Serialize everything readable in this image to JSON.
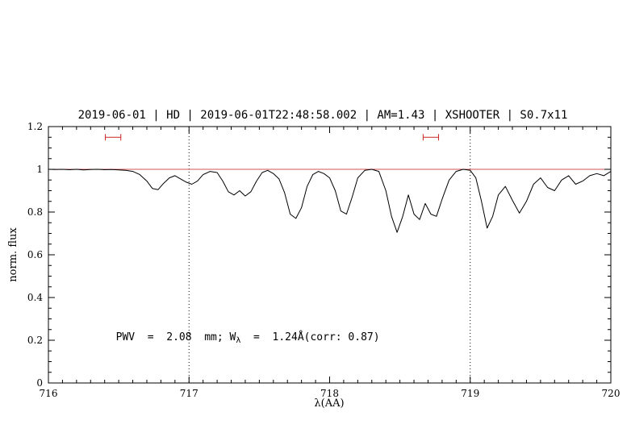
{
  "colors": {
    "accent_text": "#0000cc",
    "spectrum": "#000000",
    "continuum": "#cc5555",
    "marker": "#cc2222",
    "axis": "#000000"
  },
  "chart_data": {
    "type": "line",
    "title": "2019-06-01 | HD | 2019-06-01T22:48:58.002 | AM=1.43 | XSHOOTER | S0.7x11",
    "xlabel": "λ(AA)",
    "ylabel": "norm. flux",
    "xlim": [
      716,
      720
    ],
    "ylim": [
      0,
      1.2
    ],
    "xticks": {
      "values": [
        716,
        717,
        718,
        719,
        720
      ],
      "labels": [
        "716",
        "717",
        "718",
        "719",
        "720"
      ]
    },
    "yticks": {
      "values": [
        0,
        0.2,
        0.4,
        0.6,
        0.8,
        1,
        1.2
      ],
      "labels": [
        "0",
        "0.2",
        "0.4",
        "0.6",
        "0.8",
        "1",
        "1.2"
      ]
    },
    "x_minor_step": 0.1,
    "y_minor_step": 0.05,
    "grid": false,
    "guide_lines_x": [
      717,
      719
    ],
    "continuum_y": 1.0,
    "range_markers": [
      {
        "x_center": 716.46,
        "y": 1.15,
        "half_width": 0.055
      },
      {
        "x_center": 718.72,
        "y": 1.15,
        "half_width": 0.055
      }
    ],
    "annotation": {
      "pre": "PWV  =  2.08  mm; W",
      "sub": "λ",
      "post": "  =  1.24Å(corr: 0.87)",
      "x": 716.48,
      "y": 0.2
    },
    "series": [
      {
        "name": "spectrum",
        "x": [
          716.0,
          716.05,
          716.1,
          716.15,
          716.2,
          716.25,
          716.3,
          716.35,
          716.4,
          716.45,
          716.5,
          716.55,
          716.6,
          716.65,
          716.7,
          716.74,
          716.78,
          716.82,
          716.86,
          716.9,
          716.94,
          716.98,
          717.02,
          717.06,
          717.1,
          717.15,
          717.2,
          717.24,
          717.28,
          717.32,
          717.36,
          717.4,
          717.44,
          717.48,
          717.52,
          717.56,
          717.6,
          717.64,
          717.68,
          717.72,
          717.76,
          717.8,
          717.84,
          717.88,
          717.92,
          717.96,
          718.0,
          718.04,
          718.08,
          718.12,
          718.16,
          718.2,
          718.25,
          718.3,
          718.35,
          718.4,
          718.44,
          718.48,
          718.52,
          718.56,
          718.6,
          718.64,
          718.68,
          718.72,
          718.76,
          718.8,
          718.85,
          718.9,
          718.95,
          719.0,
          719.04,
          719.08,
          719.12,
          719.16,
          719.2,
          719.25,
          719.3,
          719.35,
          719.4,
          719.45,
          719.5,
          719.55,
          719.6,
          719.65,
          719.7,
          719.75,
          719.8,
          719.85,
          719.9,
          719.95,
          720.0
        ],
        "y": [
          1.0,
          0.999,
          1.0,
          0.998,
          1.0,
          0.997,
          0.999,
          1.0,
          0.998,
          0.999,
          0.997,
          0.995,
          0.99,
          0.975,
          0.945,
          0.91,
          0.905,
          0.935,
          0.96,
          0.97,
          0.955,
          0.94,
          0.93,
          0.945,
          0.975,
          0.99,
          0.985,
          0.945,
          0.895,
          0.88,
          0.9,
          0.875,
          0.895,
          0.945,
          0.985,
          0.995,
          0.98,
          0.955,
          0.89,
          0.79,
          0.77,
          0.82,
          0.92,
          0.975,
          0.99,
          0.98,
          0.96,
          0.9,
          0.805,
          0.79,
          0.87,
          0.96,
          0.995,
          1.0,
          0.99,
          0.9,
          0.78,
          0.705,
          0.78,
          0.88,
          0.79,
          0.765,
          0.84,
          0.79,
          0.78,
          0.86,
          0.95,
          0.99,
          1.0,
          0.995,
          0.96,
          0.85,
          0.725,
          0.78,
          0.88,
          0.92,
          0.855,
          0.795,
          0.85,
          0.93,
          0.96,
          0.915,
          0.9,
          0.95,
          0.97,
          0.93,
          0.945,
          0.97,
          0.98,
          0.97,
          0.99
        ]
      }
    ]
  }
}
